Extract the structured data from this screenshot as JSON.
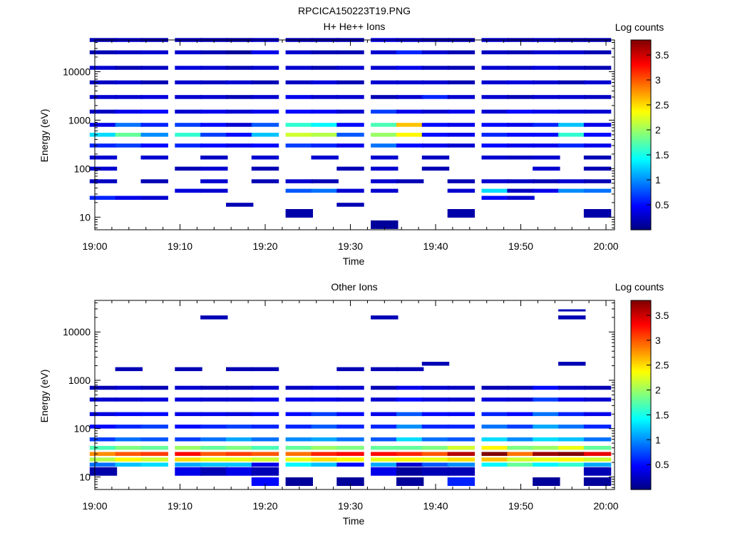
{
  "figure_title": "RPCICA150223T19.PNG",
  "colorbar": {
    "label": "Log counts",
    "min": 0,
    "max": 3.8,
    "ticks": [
      "0.5",
      "1",
      "1.5",
      "2",
      "2.5",
      "3",
      "3.5"
    ],
    "tick_values": [
      0.5,
      1,
      1.5,
      2,
      2.5,
      3,
      3.5
    ]
  },
  "chart_data": [
    {
      "type": "heatmap",
      "title": "H+ He++ Ions",
      "xlabel": "Time",
      "ylabel": "Energy (eV)",
      "x_ticks": [
        "19:00",
        "19:10",
        "19:20",
        "19:30",
        "19:40",
        "19:50",
        "20:00"
      ],
      "y_ticks": [
        "10",
        "100",
        "1000",
        "10000"
      ],
      "y_scale": "log",
      "ylim": [
        5.5,
        45000
      ],
      "xlim": [
        "19:00",
        "20:01"
      ],
      "time_bins": [
        "19:01",
        "19:04",
        "19:07",
        "19:11",
        "19:14",
        "19:17",
        "19:20",
        "19:24",
        "19:27",
        "19:30",
        "19:34",
        "19:37",
        "19:40",
        "19:43",
        "19:47",
        "19:50",
        "19:53",
        "19:56",
        "19:59"
      ],
      "bands": [
        {
          "energy": 45000,
          "values": [
            0.2,
            0.3,
            0.2,
            0.25,
            0.2,
            0.15,
            0.3,
            0.2,
            0.2,
            0.2,
            0.4,
            0.3,
            0.2,
            0.2,
            0.3,
            0.2,
            0.3,
            0.2,
            0.2
          ]
        },
        {
          "energy": 25000,
          "values": [
            0.2,
            0.25,
            0.3,
            0.3,
            0.2,
            0.1,
            0.4,
            0.3,
            0.2,
            0.2,
            0.3,
            0.6,
            0.3,
            0.2,
            0.25,
            0.2,
            0.3,
            0.3,
            0.2
          ]
        },
        {
          "energy": 12000,
          "values": [
            0.3,
            0.2,
            0.25,
            0.35,
            0.3,
            0.2,
            0.3,
            0.3,
            0.2,
            0.3,
            0.3,
            0.4,
            0.25,
            0.2,
            0.3,
            0.25,
            0.35,
            0.25,
            0.2
          ]
        },
        {
          "energy": 6000,
          "values": [
            0.25,
            0.3,
            0.2,
            0.3,
            0.25,
            0.3,
            0.2,
            0.25,
            0.35,
            0.2,
            0.3,
            0.3,
            0.3,
            0.2,
            0.3,
            0.35,
            0.3,
            0.2,
            0.3
          ]
        },
        {
          "energy": 3000,
          "values": [
            0.3,
            0.3,
            0.35,
            0.3,
            0.3,
            0.2,
            0.3,
            0.4,
            0.3,
            0.3,
            0.2,
            0.3,
            0.6,
            0.3,
            0.3,
            0.2,
            0.3,
            0.3,
            0.25
          ]
        },
        {
          "energy": 1500,
          "values": [
            0.25,
            0.4,
            0.5,
            0.3,
            0.4,
            0.3,
            0.4,
            0.5,
            0.45,
            0.3,
            0.7,
            0.4,
            0.3,
            0.4,
            0.3,
            0.5,
            0.4,
            0.35,
            0.3
          ]
        },
        {
          "energy": 800,
          "values": [
            0.4,
            0.9,
            0.6,
            0.7,
            0.5,
            0.3,
            0.8,
            1.6,
            1.4,
            0.5,
            1.7,
            2.6,
            0.5,
            0.4,
            0.5,
            0.4,
            0.6,
            1.2,
            0.4
          ]
        },
        {
          "energy": 500,
          "values": [
            1.3,
            1.8,
            1.0,
            1.6,
            0.7,
            0.5,
            1.2,
            2.2,
            2.1,
            0.8,
            2.0,
            2.4,
            0.5,
            0.4,
            0.6,
            0.5,
            0.5,
            1.6,
            0.5
          ]
        },
        {
          "energy": 300,
          "values": [
            0.6,
            0.7,
            0.5,
            0.6,
            0.5,
            0.4,
            0.5,
            0.7,
            0.6,
            0.4,
            0.9,
            0.5,
            0.4,
            0.3,
            0.5,
            0.4,
            0.4,
            0.6,
            0.4
          ]
        },
        {
          "energy": 170,
          "values": [
            0.3,
            0,
            0.3,
            0,
            0.25,
            0,
            0.3,
            0,
            0.3,
            0,
            0.3,
            0,
            0.25,
            0,
            0.3,
            0.25,
            0.3,
            0,
            0.2
          ]
        },
        {
          "energy": 100,
          "values": [
            0.3,
            0,
            0,
            0.2,
            0.3,
            0,
            0.2,
            0,
            0,
            0.2,
            0.3,
            0,
            0.2,
            0,
            0,
            0,
            0.3,
            0,
            0.2
          ]
        },
        {
          "energy": 55,
          "values": [
            0.25,
            0,
            0.2,
            0,
            0.3,
            0,
            0.2,
            0.3,
            0.2,
            0,
            0.3,
            0.2,
            0,
            0.2,
            0.3,
            0.25,
            0.2,
            0.3,
            0.2
          ]
        },
        {
          "energy": 35,
          "values": [
            0,
            0,
            0,
            0.35,
            0.3,
            0,
            0,
            0.8,
            0.9,
            0.3,
            0.3,
            0,
            0,
            0.3,
            1.3,
            0.25,
            0.4,
            1.0,
            0.9
          ]
        },
        {
          "energy": 25,
          "values": [
            0.6,
            0.4,
            0.3,
            0,
            0,
            0,
            0,
            0,
            0,
            0,
            0,
            0,
            0,
            0,
            0.5,
            0.3,
            0,
            0,
            0
          ]
        },
        {
          "energy": 18,
          "values": [
            0,
            0,
            0,
            0,
            0,
            0.2,
            0,
            0,
            0,
            0.2,
            0,
            0,
            0,
            0,
            0,
            0,
            0,
            0,
            0
          ]
        },
        {
          "energy": 12,
          "values": [
            0,
            0,
            0,
            0,
            0,
            0,
            0,
            0.15,
            0,
            0,
            0,
            0,
            0,
            0.15,
            0,
            0,
            0,
            0,
            0.15
          ]
        },
        {
          "energy": 7,
          "values": [
            0,
            0,
            0,
            0,
            0,
            0,
            0,
            0,
            0,
            0,
            0.1,
            0,
            0,
            0,
            0,
            0,
            0,
            0,
            0
          ]
        }
      ]
    },
    {
      "type": "heatmap",
      "title": "Other Ions",
      "xlabel": "Time",
      "ylabel": "Energy (eV)",
      "x_ticks": [
        "19:00",
        "19:10",
        "19:20",
        "19:30",
        "19:40",
        "19:50",
        "20:00"
      ],
      "y_ticks": [
        "10",
        "100",
        "1000",
        "10000"
      ],
      "y_scale": "log",
      "ylim": [
        5.5,
        45000
      ],
      "xlim": [
        "19:00",
        "20:01"
      ],
      "time_bins": [
        "19:01",
        "19:04",
        "19:07",
        "19:11",
        "19:14",
        "19:17",
        "19:20",
        "19:24",
        "19:27",
        "19:30",
        "19:34",
        "19:37",
        "19:40",
        "19:43",
        "19:47",
        "19:50",
        "19:53",
        "19:56",
        "19:59"
      ],
      "bands": [
        {
          "energy": 28000,
          "values": [
            0,
            0,
            0,
            0,
            0,
            0,
            0,
            0,
            0,
            0,
            0,
            0,
            0,
            0,
            0,
            0,
            0,
            0.2,
            0
          ]
        },
        {
          "energy": 20000,
          "values": [
            0,
            0,
            0,
            0,
            0.2,
            0,
            0,
            0,
            0,
            0,
            0.2,
            0,
            0,
            0,
            0,
            0,
            0,
            0.2,
            0
          ]
        },
        {
          "energy": 2200,
          "values": [
            0,
            0,
            0,
            0,
            0,
            0,
            0,
            0,
            0,
            0,
            0,
            0,
            0.2,
            0,
            0,
            0,
            0,
            0.2,
            0
          ]
        },
        {
          "energy": 1700,
          "values": [
            0,
            0.2,
            0,
            0.2,
            0,
            0.2,
            0.2,
            0,
            0,
            0.2,
            0.2,
            0.2,
            0,
            0,
            0,
            0,
            0,
            0,
            0
          ]
        },
        {
          "energy": 700,
          "values": [
            0.2,
            0.3,
            0.2,
            0.3,
            0.2,
            0.2,
            0.3,
            0.25,
            0.35,
            0.3,
            0.2,
            0.4,
            0.3,
            0.25,
            0.2,
            0.2,
            0.5,
            0.25,
            0.2
          ]
        },
        {
          "energy": 400,
          "values": [
            0.3,
            0.3,
            0.35,
            0.35,
            0.3,
            0.3,
            0.4,
            0.4,
            0.4,
            0.35,
            0.3,
            0.5,
            0.35,
            0.3,
            0.35,
            0.3,
            0.7,
            0.4,
            0.3
          ]
        },
        {
          "energy": 200,
          "values": [
            0.35,
            0.45,
            0.5,
            0.4,
            0.4,
            0.35,
            0.5,
            0.5,
            0.7,
            0.5,
            0.4,
            0.8,
            0.5,
            0.45,
            0.6,
            0.5,
            0.9,
            0.6,
            0.4
          ]
        },
        {
          "energy": 110,
          "values": [
            0.5,
            0.6,
            0.7,
            0.5,
            0.6,
            0.7,
            0.6,
            0.6,
            0.8,
            0.6,
            0.6,
            1.0,
            0.6,
            0.6,
            0.9,
            0.7,
            1.1,
            0.9,
            0.6
          ]
        },
        {
          "energy": 60,
          "values": [
            0.7,
            0.9,
            0.8,
            0.7,
            0.9,
            1.1,
            0.9,
            1.0,
            1.1,
            0.9,
            0.8,
            1.3,
            0.9,
            0.8,
            1.3,
            1.0,
            1.3,
            1.2,
            0.9
          ]
        },
        {
          "energy": 40,
          "values": [
            1.7,
            1.9,
            1.8,
            2.0,
            1.8,
            1.9,
            1.7,
            1.8,
            2.0,
            1.9,
            1.8,
            1.8,
            1.9,
            2.2,
            2.4,
            1.9,
            2.0,
            2.3,
            1.8
          ]
        },
        {
          "energy": 30,
          "values": [
            2.8,
            3.0,
            3.1,
            3.3,
            3.0,
            3.1,
            3.0,
            2.9,
            3.2,
            3.3,
            3.3,
            3.2,
            3.0,
            3.6,
            3.8,
            2.9,
            3.7,
            3.8,
            3.4
          ]
        },
        {
          "energy": 23,
          "values": [
            2.1,
            2.4,
            2.2,
            2.5,
            2.3,
            2.3,
            2.2,
            2.3,
            2.5,
            2.4,
            2.3,
            2.4,
            2.3,
            2.5,
            2.6,
            2.2,
            2.3,
            2.4,
            2.2
          ]
        },
        {
          "energy": 18,
          "values": [
            0.9,
            1.2,
            1.3,
            1.1,
            1.2,
            1.2,
            0.4,
            1.4,
            1.2,
            0.5,
            1.1,
            0.3,
            0.8,
            1.0,
            1.4,
            1.8,
            1.4,
            1.6,
            1.1
          ]
        },
        {
          "energy": 13,
          "values": [
            0.15,
            0,
            0,
            0.4,
            0.2,
            0.4,
            0.2,
            0,
            0,
            0,
            0.4,
            0.1,
            0.2,
            0.2,
            0,
            0,
            0,
            0,
            0.2
          ]
        },
        {
          "energy": 8,
          "values": [
            0,
            0,
            0,
            0,
            0,
            0,
            0.5,
            0.1,
            0,
            0.1,
            0,
            0.1,
            0,
            0.6,
            0,
            0,
            0.1,
            0,
            0.1
          ]
        }
      ]
    }
  ]
}
